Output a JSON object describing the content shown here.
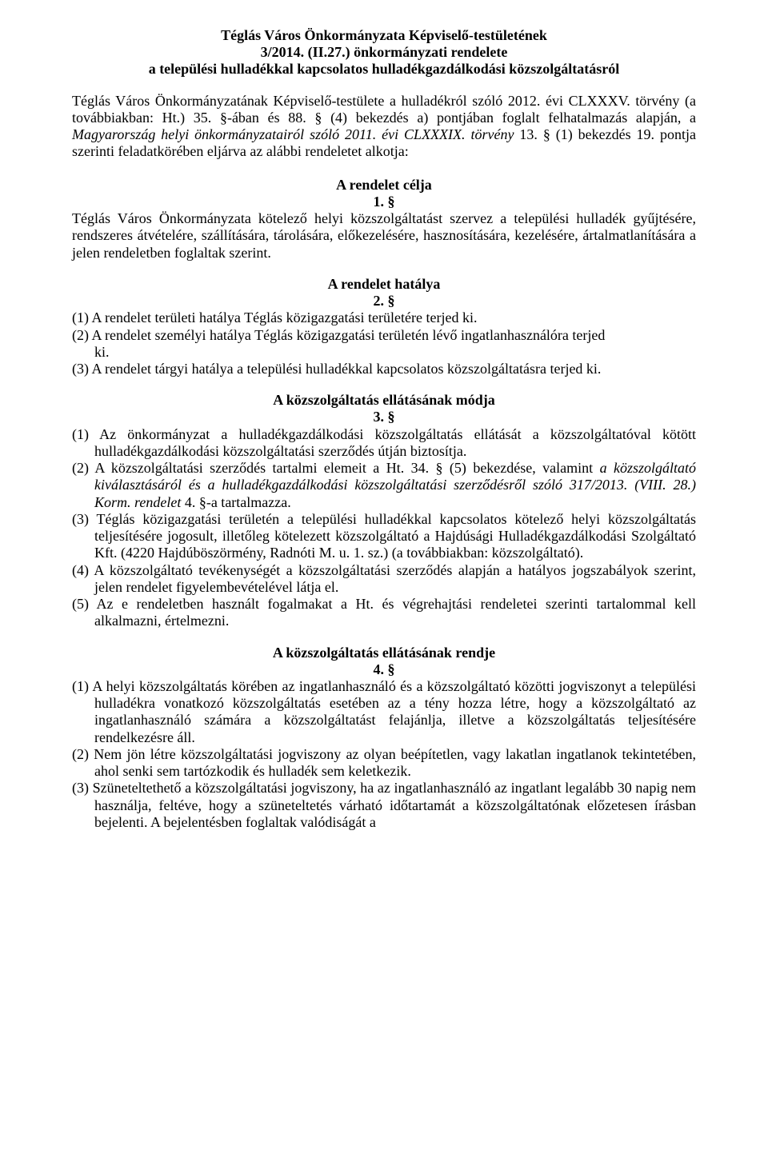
{
  "title": {
    "line1": "Téglás Város Önkormányzata Képviselő-testületének",
    "line2": "3/2014. (II.27.) önkormányzati rendelete",
    "line3": "a települési hulladékkal kapcsolatos hulladékgazdálkodási közszolgáltatásról"
  },
  "preamble": {
    "p1a": "Téglás Város Önkormányzatának Képviselő-testülete a hulladékról szóló 2012. évi CLXXXV. törvény (a továbbiakban: Ht.) 35. §-ában és 88. § (4) bekezdés a) pontjában foglalt felhatalmazás alapján, a ",
    "p1b_italic": "Magyarország helyi önkormányzatairól szóló 2011. évi CLXXXIX. törvény",
    "p1c": " 13. § (1) bekezdés 19. pontja szerinti feladatkörében eljárva az alábbi rendeletet alkotja:"
  },
  "s1": {
    "heading": "A rendelet célja",
    "num": "1. §",
    "text": "Téglás Város Önkormányzata kötelező helyi közszolgáltatást szervez a települési hulladék gyűjtésére, rendszeres átvételére, szállítására, tárolására, előkezelésére, hasznosítására, kezelésére, ártalmatlanítására a jelen rendeletben foglaltak szerint."
  },
  "s2": {
    "heading": "A rendelet hatálya",
    "num": "2. §",
    "i1": "(1) A rendelet területi hatálya Téglás közigazgatási területére terjed ki.",
    "i2a": "(2) A rendelet személyi hatálya Téglás közigazgatási területén lévő ingatlanhasználóra terjed",
    "i2b": "ki.",
    "i3": "(3) A rendelet tárgyi hatálya a települési hulladékkal kapcsolatos közszolgáltatásra terjed ki."
  },
  "s3": {
    "heading": "A közszolgáltatás ellátásának módja",
    "num": "3. §",
    "i1": "(1) Az önkormányzat a hulladékgazdálkodási közszolgáltatás ellátását a közszolgáltatóval kötött hulladékgazdálkodási közszolgáltatási szerződés útján biztosítja.",
    "i2a": "(2) A közszolgáltatási szerződés tartalmi elemeit a Ht. 34. § (5) bekezdése, valamint ",
    "i2b_italic": "a közszolgáltató kiválasztásáról és a hulladékgazdálkodási közszolgáltatási szerződésről szóló 317/2013. (VIII. 28.) Korm. rendelet",
    "i2c": " 4. §-a tartalmazza.",
    "i3": "(3) Téglás közigazgatási területén a települési hulladékkal kapcsolatos kötelező helyi közszolgáltatás teljesítésére jogosult, illetőleg kötelezett közszolgáltató a Hajdúsági Hulladékgazdálkodási Szolgáltató Kft. (4220 Hajdúböszörmény, Radnóti M. u. 1. sz.) (a továbbiakban: közszolgáltató).",
    "i4": "(4) A közszolgáltató tevékenységét a közszolgáltatási szerződés alapján a hatályos jogszabályok szerint, jelen rendelet figyelembevételével látja el.",
    "i5": "(5) Az e rendeletben használt fogalmakat a Ht. és végrehajtási rendeletei szerinti tartalommal kell alkalmazni, értelmezni."
  },
  "s4": {
    "heading": "A közszolgáltatás ellátásának rendje",
    "num": "4. §",
    "i1": "(1) A helyi közszolgáltatás körében az ingatlanhasználó és a közszolgáltató közötti jogviszonyt a települési hulladékra vonatkozó közszolgáltatás esetében az a tény hozza létre, hogy a közszolgáltató az ingatlanhasználó számára a közszolgáltatást felajánlja, illetve a közszolgáltatás teljesítésére rendelkezésre áll.",
    "i2": "(2) Nem jön létre közszolgáltatási jogviszony az olyan beépítetlen, vagy lakatlan ingatlanok tekintetében, ahol senki sem tartózkodik és hulladék sem keletkezik.",
    "i3": "(3) Szüneteltethető a közszolgáltatási jogviszony, ha az ingatlanhasználó az ingatlant legalább 30 napig nem használja, feltéve, hogy a szüneteltetés várható időtartamát a közszolgáltatónak előzetesen írásban bejelenti. A bejelentésben foglaltak valódiságát a"
  }
}
